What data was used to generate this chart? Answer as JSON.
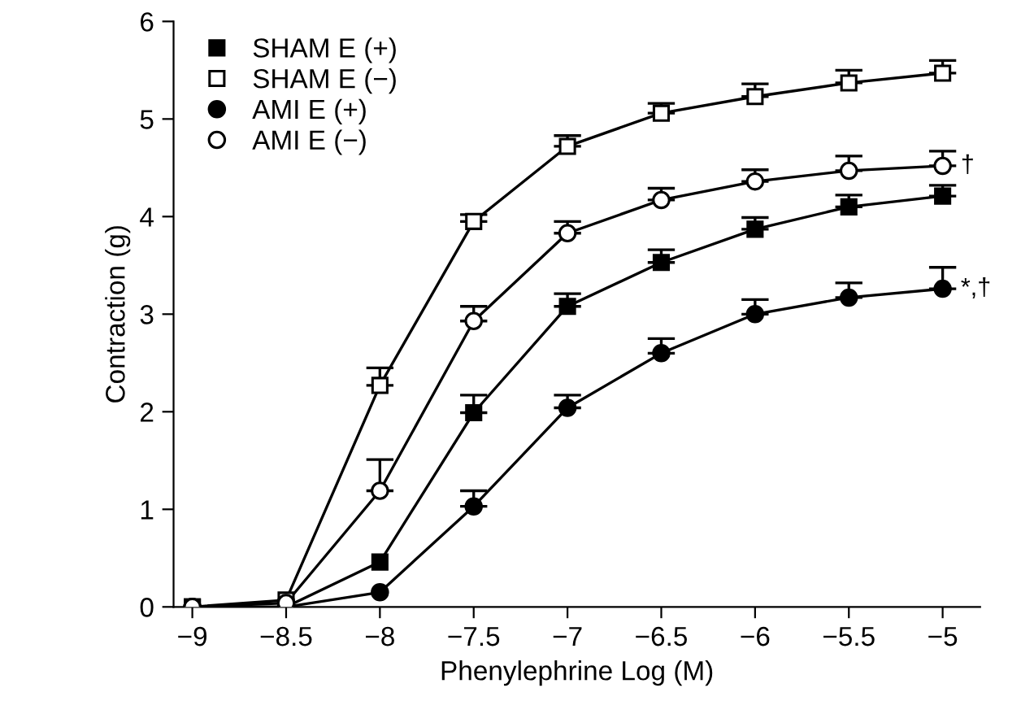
{
  "chart_data": {
    "type": "line",
    "xlabel": "Phenylephrine Log (M)",
    "ylabel": "Contraction (g)",
    "x": [
      -9,
      -8.5,
      -8,
      -7.5,
      -7,
      -6.5,
      -6,
      -5.5,
      -5
    ],
    "xlim": [
      -9.1,
      -4.8
    ],
    "xticks": [
      -9,
      -8.5,
      -8,
      -7.5,
      -7,
      -6.5,
      -6,
      -5.5,
      -5
    ],
    "ylim": [
      0,
      6
    ],
    "yticks": [
      0,
      1,
      2,
      3,
      4,
      5,
      6
    ],
    "grid": false,
    "legend": "top left",
    "line_style": "solid",
    "series": [
      {
        "name": "SHAM E (+)",
        "color": "#000000",
        "marker": "square",
        "values": [
          0,
          0,
          0.46,
          1.99,
          3.08,
          3.53,
          3.87,
          4.1,
          4.21
        ],
        "errors": [
          null,
          null,
          null,
          [
            1.99,
            2.17
          ],
          [
            3.08,
            3.21
          ],
          [
            3.53,
            3.66
          ],
          [
            3.87,
            3.99
          ],
          [
            4.1,
            4.22
          ],
          [
            4.21,
            4.32
          ]
        ]
      },
      {
        "name": "SHAM E (−)",
        "color": "#000000",
        "marker": "square",
        "values": [
          0,
          0.07,
          2.27,
          3.95,
          4.72,
          5.06,
          5.23,
          5.37,
          5.47
        ],
        "errors": [
          null,
          null,
          [
            2.27,
            2.45
          ],
          [
            3.95,
            4.02
          ],
          [
            4.72,
            4.83
          ],
          [
            5.06,
            5.16
          ],
          [
            5.23,
            5.36
          ],
          [
            5.37,
            5.5
          ],
          [
            5.47,
            5.6
          ]
        ]
      },
      {
        "name": "AMI E (+)",
        "color": "#000000",
        "marker": "circle",
        "values": [
          0,
          0,
          0.15,
          1.03,
          2.04,
          2.6,
          3.0,
          3.17,
          3.26
        ],
        "errors": [
          null,
          null,
          null,
          [
            1.03,
            1.19
          ],
          [
            2.04,
            2.17
          ],
          [
            2.6,
            2.75
          ],
          [
            3.0,
            3.15
          ],
          [
            3.17,
            3.32
          ],
          [
            3.26,
            3.48
          ]
        ]
      },
      {
        "name": "AMI E (−)",
        "color": "#000000",
        "marker": "circle",
        "values": [
          0,
          0.04,
          1.19,
          2.93,
          3.83,
          4.17,
          4.36,
          4.47,
          4.52
        ],
        "errors": [
          null,
          null,
          [
            1.19,
            1.51
          ],
          [
            2.93,
            3.08
          ],
          [
            3.83,
            3.95
          ],
          [
            4.17,
            4.29
          ],
          [
            4.36,
            4.48
          ],
          [
            4.47,
            4.62
          ],
          [
            4.52,
            4.67
          ]
        ]
      }
    ],
    "annotations": [
      {
        "text": "†",
        "x": -5,
        "y": 4.52
      },
      {
        "text": "*,†",
        "x": -5,
        "y": 3.26
      }
    ]
  }
}
